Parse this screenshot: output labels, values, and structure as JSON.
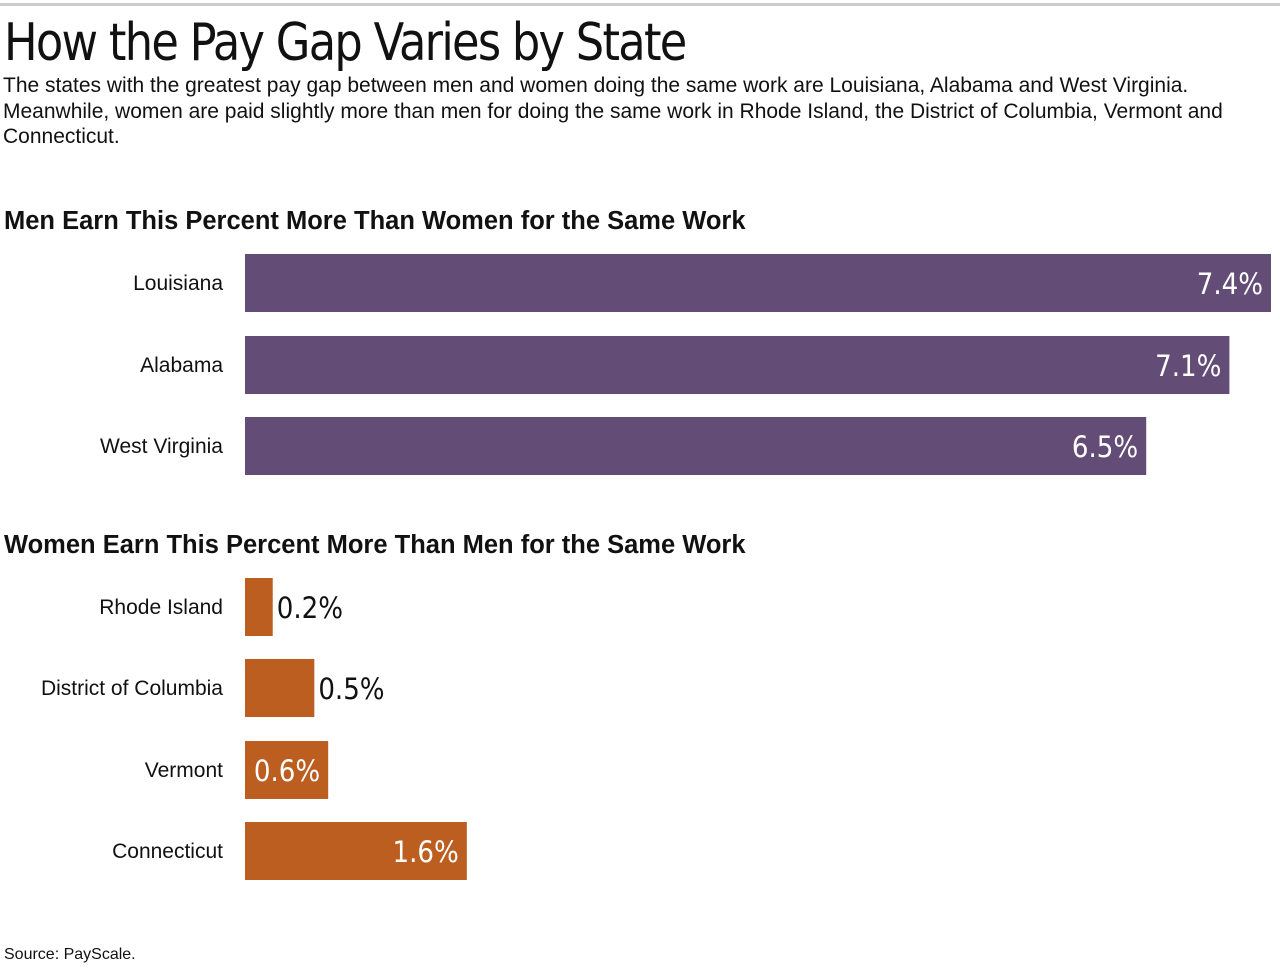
{
  "title": "How the Pay Gap Varies by State",
  "subtitle": "The states with the greatest pay gap between men and women doing the same work are Louisiana, Alabama and West Virginia. Meanwhile, women are paid slightly more than men for doing the same work in Rhode Island, the District of Columbia, Vermont and Connecticut.",
  "source": "Source: PayScale.",
  "colors": {
    "men": "#634c75",
    "women": "#bb5e1f"
  },
  "chart_data": [
    {
      "type": "bar",
      "orientation": "horizontal",
      "title": "Men Earn This Percent More Than Women for the Same Work",
      "categories": [
        "Louisiana",
        "Alabama",
        "West Virginia"
      ],
      "values": [
        7.4,
        7.1,
        6.5
      ],
      "value_labels": [
        "7.4%",
        "7.1%",
        "6.5%"
      ],
      "unit": "%",
      "color": "#634c75",
      "xlabel": "",
      "ylabel": "",
      "grid": false
    },
    {
      "type": "bar",
      "orientation": "horizontal",
      "title": "Women Earn This Percent More Than Men for the Same Work",
      "categories": [
        "Rhode Island",
        "District of Columbia",
        "Vermont",
        "Connecticut"
      ],
      "values": [
        0.2,
        0.5,
        0.6,
        1.6
      ],
      "value_labels": [
        "0.2%",
        "0.5%",
        "0.6%",
        "1.6%"
      ],
      "unit": "%",
      "color": "#bb5e1f",
      "xlabel": "",
      "ylabel": "",
      "grid": false
    }
  ]
}
